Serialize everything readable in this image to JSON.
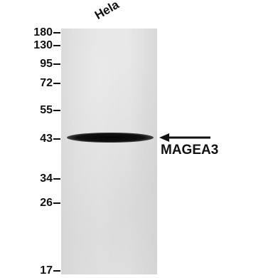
{
  "lane": {
    "label": "Hela"
  },
  "markers": [
    {
      "label": "180",
      "kda": 180
    },
    {
      "label": "130",
      "kda": 130
    },
    {
      "label": "95",
      "kda": 95
    },
    {
      "label": "72",
      "kda": 72
    },
    {
      "label": "55",
      "kda": 55
    },
    {
      "label": "43",
      "kda": 43
    },
    {
      "label": "34",
      "kda": 34
    },
    {
      "label": "26",
      "kda": 26
    },
    {
      "label": "17",
      "kda": 17
    }
  ],
  "band": {
    "target": "MAGEA3",
    "marker_kda": 43
  },
  "colors": {
    "background": "#ffffff",
    "membrane": "#e0e0e0",
    "band": "#0a0a0a",
    "text": "#111111"
  }
}
